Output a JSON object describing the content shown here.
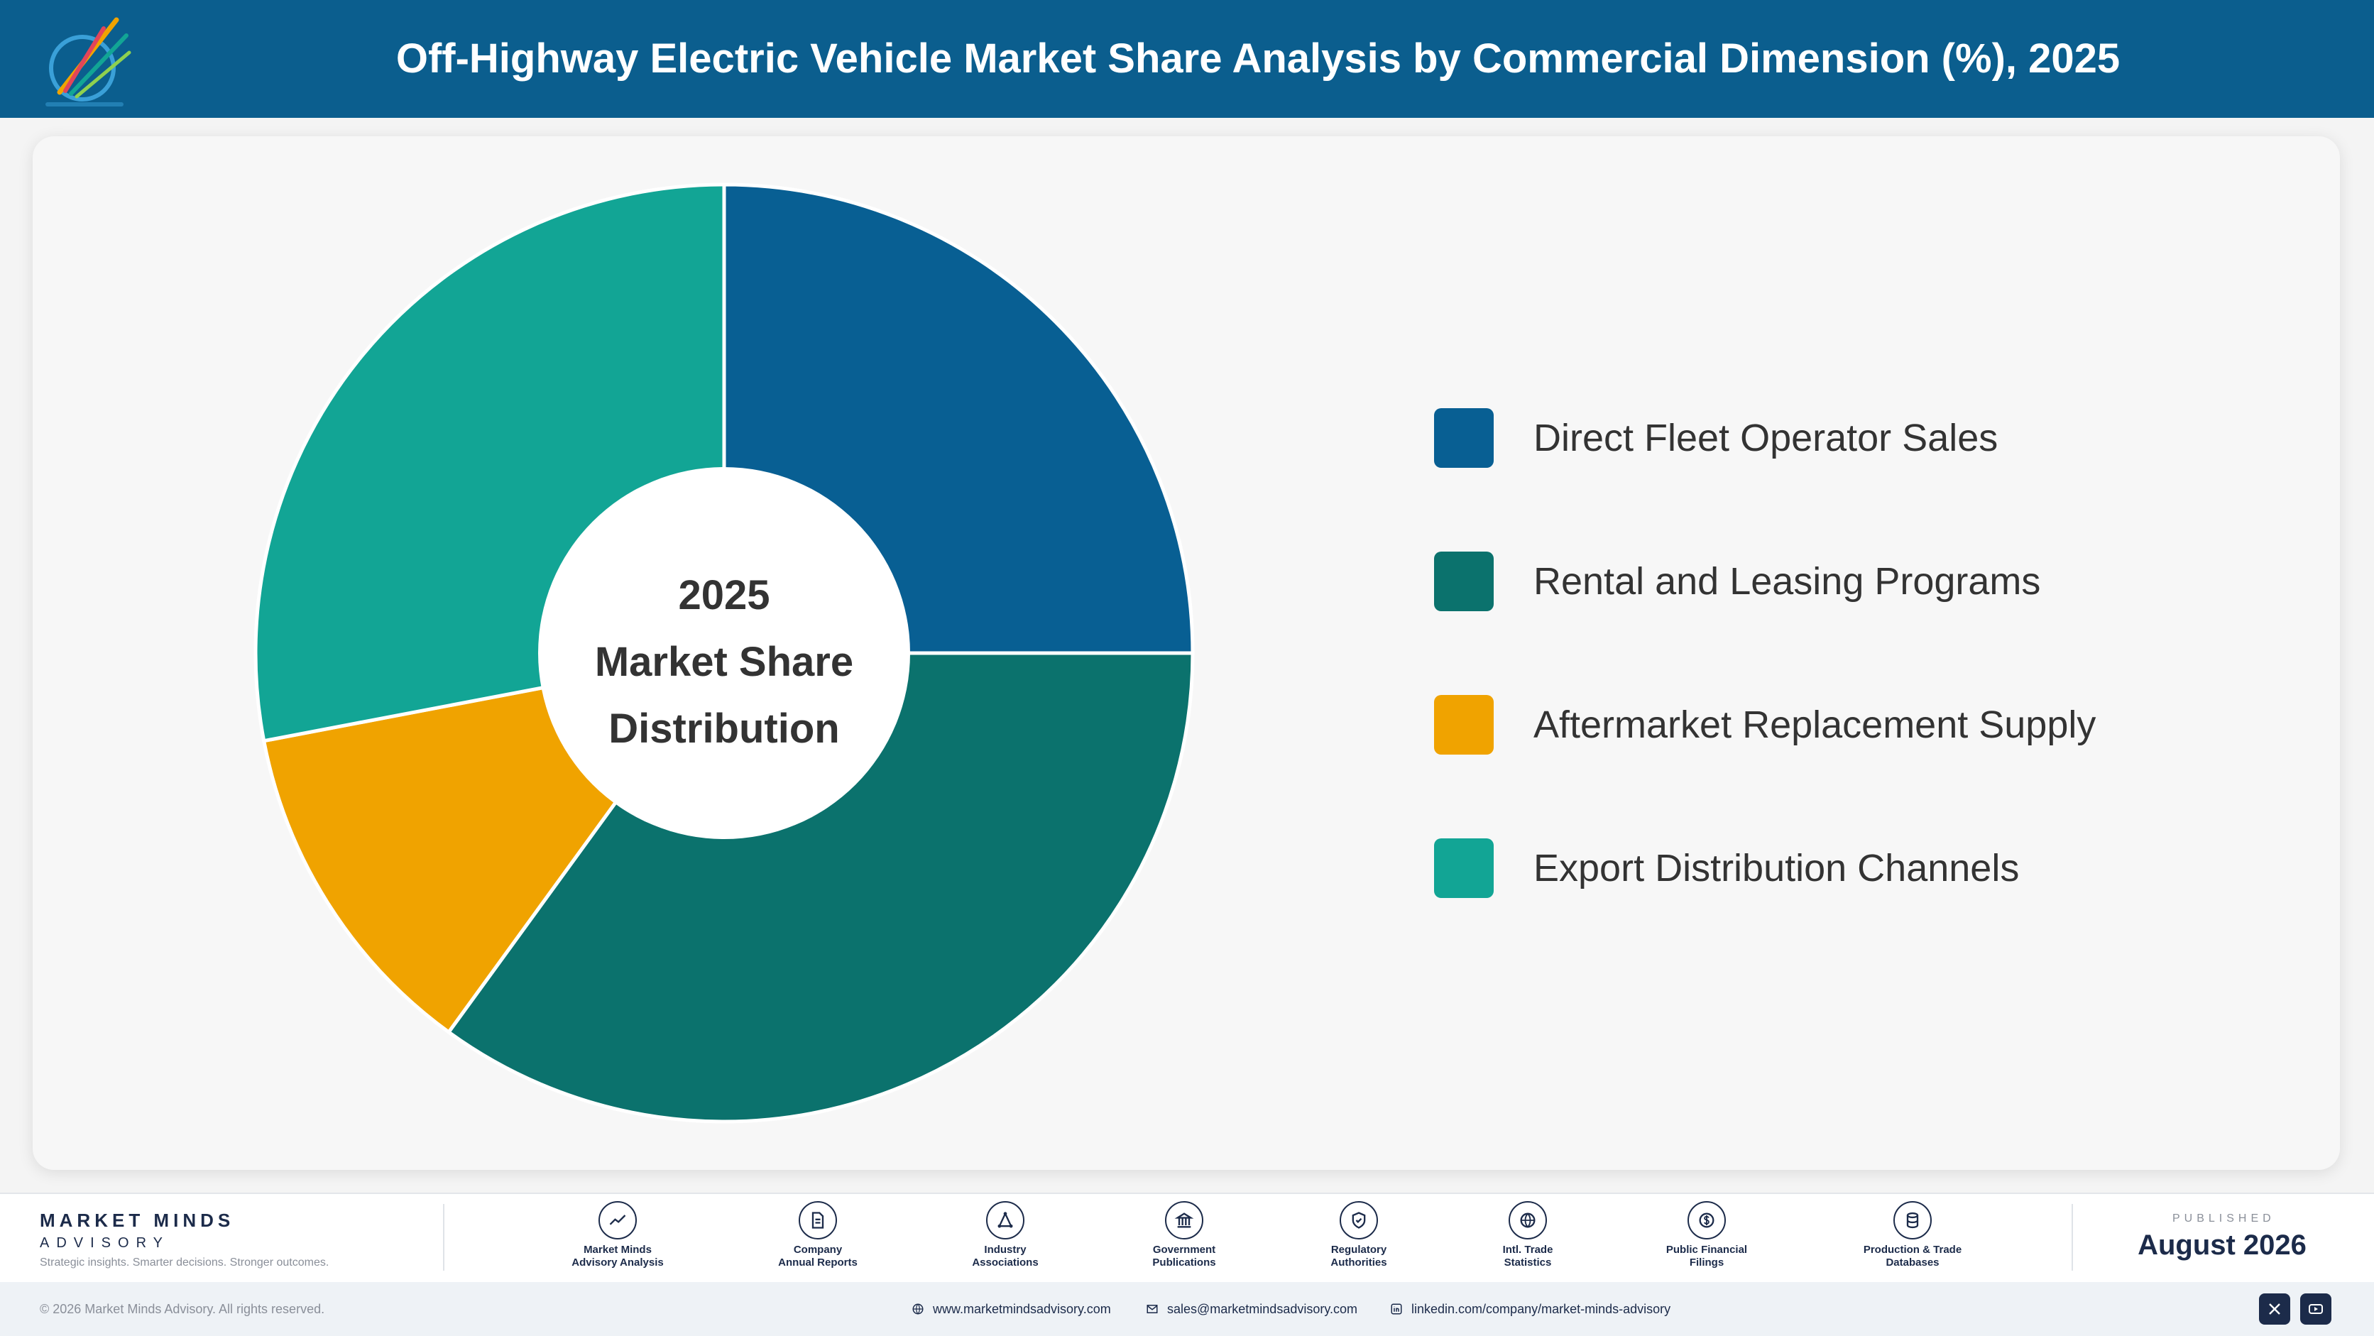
{
  "header": {
    "title": "Off-Highway Electric Vehicle Market Share Analysis by Commercial Dimension (%), 2025"
  },
  "chart_data": {
    "type": "pie",
    "title": "Off-Highway Electric Vehicle Market Share Analysis by Commercial Dimension (%), 2025",
    "center_label": [
      "2025",
      "Market Share",
      "Distribution"
    ],
    "categories": [
      "Direct Fleet Operator Sales",
      "Rental and Leasing Programs",
      "Aftermarket Replacement Supply",
      "Export Distribution Channels"
    ],
    "values": [
      25,
      35,
      12,
      28
    ],
    "unit": "%",
    "colors": [
      "#085f93",
      "#0b726d",
      "#f0a300",
      "#12a595"
    ],
    "legend_position": "right"
  },
  "footer": {
    "brand_name": "MARKET MINDS",
    "brand_sub": "ADVISORY",
    "tagline": "Strategic insights. Smarter decisions. Stronger outcomes.",
    "sources": [
      {
        "line1": "Market Minds",
        "line2": "Advisory Analysis",
        "icon": "trend-chart-icon"
      },
      {
        "line1": "Company",
        "line2": "Annual Reports",
        "icon": "document-icon"
      },
      {
        "line1": "Industry",
        "line2": "Associations",
        "icon": "network-icon"
      },
      {
        "line1": "Government",
        "line2": "Publications",
        "icon": "government-building-icon"
      },
      {
        "line1": "Regulatory",
        "line2": "Authorities",
        "icon": "shield-check-icon"
      },
      {
        "line1": "Intl. Trade",
        "line2": "Statistics",
        "icon": "globe-icon"
      },
      {
        "line1": "Public Financial",
        "line2": "Filings",
        "icon": "currency-icon"
      },
      {
        "line1": "Production & Trade",
        "line2": "Databases",
        "icon": "database-icon"
      }
    ],
    "published_label": "PUBLISHED",
    "published_date": "August 2026"
  },
  "bottombar": {
    "copyright": "© 2026 Market Minds Advisory. All rights reserved.",
    "website": "www.marketmindsadvisory.com",
    "email": "sales@marketmindsadvisory.com",
    "linkedin": "linkedin.com/company/market-minds-advisory"
  }
}
